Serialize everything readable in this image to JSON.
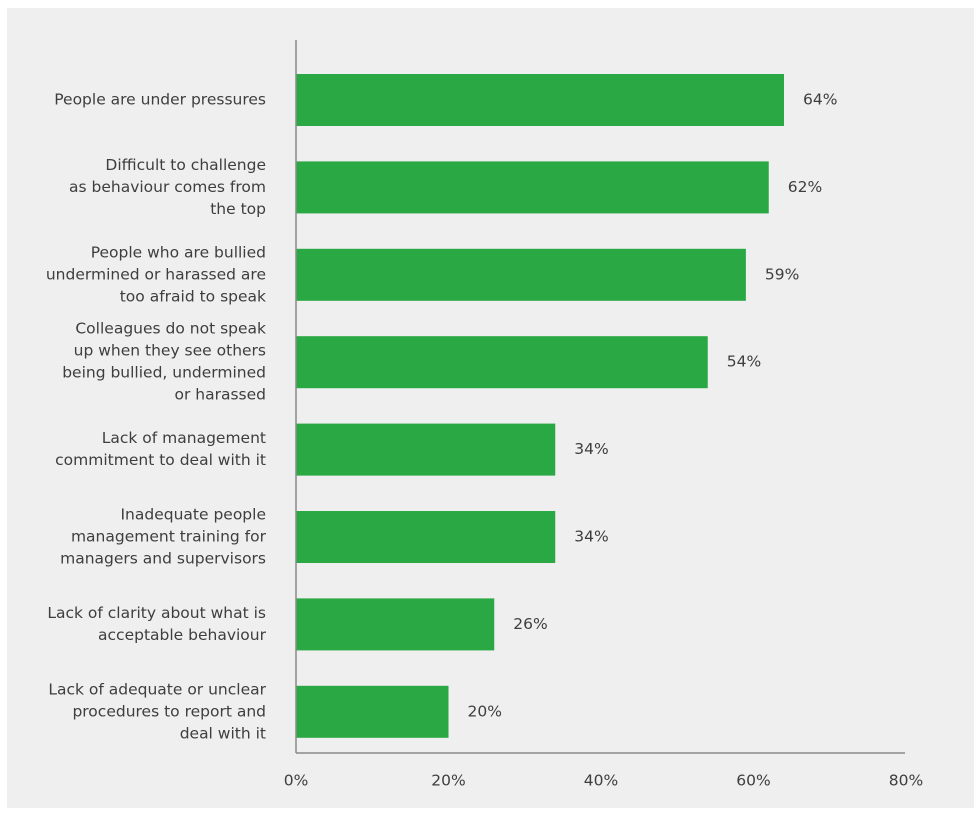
{
  "chart_data": {
    "type": "bar",
    "orientation": "horizontal",
    "categories": [
      [
        "People are under pressures"
      ],
      [
        "Difficult to challenge",
        "as behaviour comes from",
        "the top"
      ],
      [
        "People who are bullied",
        "undermined or harassed are",
        "too afraid to speak"
      ],
      [
        "Colleagues do not speak",
        "up when they see others",
        "being bullied, undermined",
        "or harassed"
      ],
      [
        "Lack of management",
        "commitment to deal with it"
      ],
      [
        "Inadequate people",
        "management training for",
        "managers and supervisors"
      ],
      [
        "Lack of clarity about what is",
        "acceptable behaviour"
      ],
      [
        "Lack of adequate or unclear",
        "procedures to report and",
        "deal with it"
      ]
    ],
    "values": [
      64,
      62,
      59,
      54,
      34,
      34,
      26,
      20
    ],
    "value_labels": [
      "64%",
      "62%",
      "59%",
      "54%",
      "34%",
      "34%",
      "26%",
      "20%"
    ],
    "xlim": [
      0,
      80
    ],
    "xticks": [
      0,
      20,
      40,
      60,
      80
    ],
    "xtick_labels": [
      "0%",
      "20%",
      "40%",
      "60%",
      "80%"
    ],
    "title": "",
    "xlabel": "",
    "ylabel": "",
    "grid": false,
    "bar_color": "#29a843",
    "background_color": "#efefef",
    "axis_color": "#8a8a8a",
    "text_color": "#3e3e3e"
  }
}
